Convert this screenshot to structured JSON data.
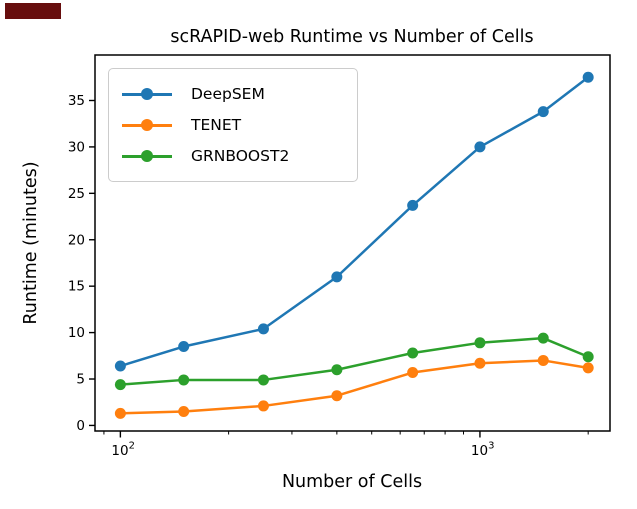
{
  "overlay": {
    "redaction_color": "#670e0e"
  },
  "chart_data": {
    "type": "line",
    "title": "scRAPID-web Runtime vs Number of Cells",
    "xlabel": "Number of Cells",
    "ylabel": "Runtime (minutes)",
    "x_scale": "log",
    "grid": false,
    "legend_position": "upper left",
    "x": [
      100,
      150,
      250,
      400,
      650,
      1000,
      1500,
      2000
    ],
    "series": [
      {
        "name": "DeepSEM",
        "color": "#1f77b4",
        "values": [
          6.4,
          8.5,
          10.4,
          16.0,
          23.7,
          30.0,
          33.8,
          37.5
        ]
      },
      {
        "name": "TENET",
        "color": "#ff7f0e",
        "values": [
          1.3,
          1.5,
          2.1,
          3.2,
          5.7,
          6.7,
          7.0,
          6.2
        ]
      },
      {
        "name": "GRNBOOST2",
        "color": "#2ca02c",
        "values": [
          4.4,
          4.9,
          4.9,
          6.0,
          7.8,
          8.9,
          9.4,
          7.4
        ]
      }
    ],
    "y_ticks": [
      0,
      5,
      10,
      15,
      20,
      25,
      30,
      35
    ],
    "x_major_ticks": [
      {
        "value": 100,
        "base": "10",
        "exp": "2"
      },
      {
        "value": 1000,
        "base": "10",
        "exp": "3"
      }
    ],
    "x_minor_ticks": [
      90,
      200,
      300,
      400,
      500,
      600,
      700,
      800,
      900,
      2000
    ],
    "xlim": [
      85,
      2300
    ],
    "ylim": [
      -0.6,
      39.9
    ],
    "axis_color": "#000000"
  }
}
